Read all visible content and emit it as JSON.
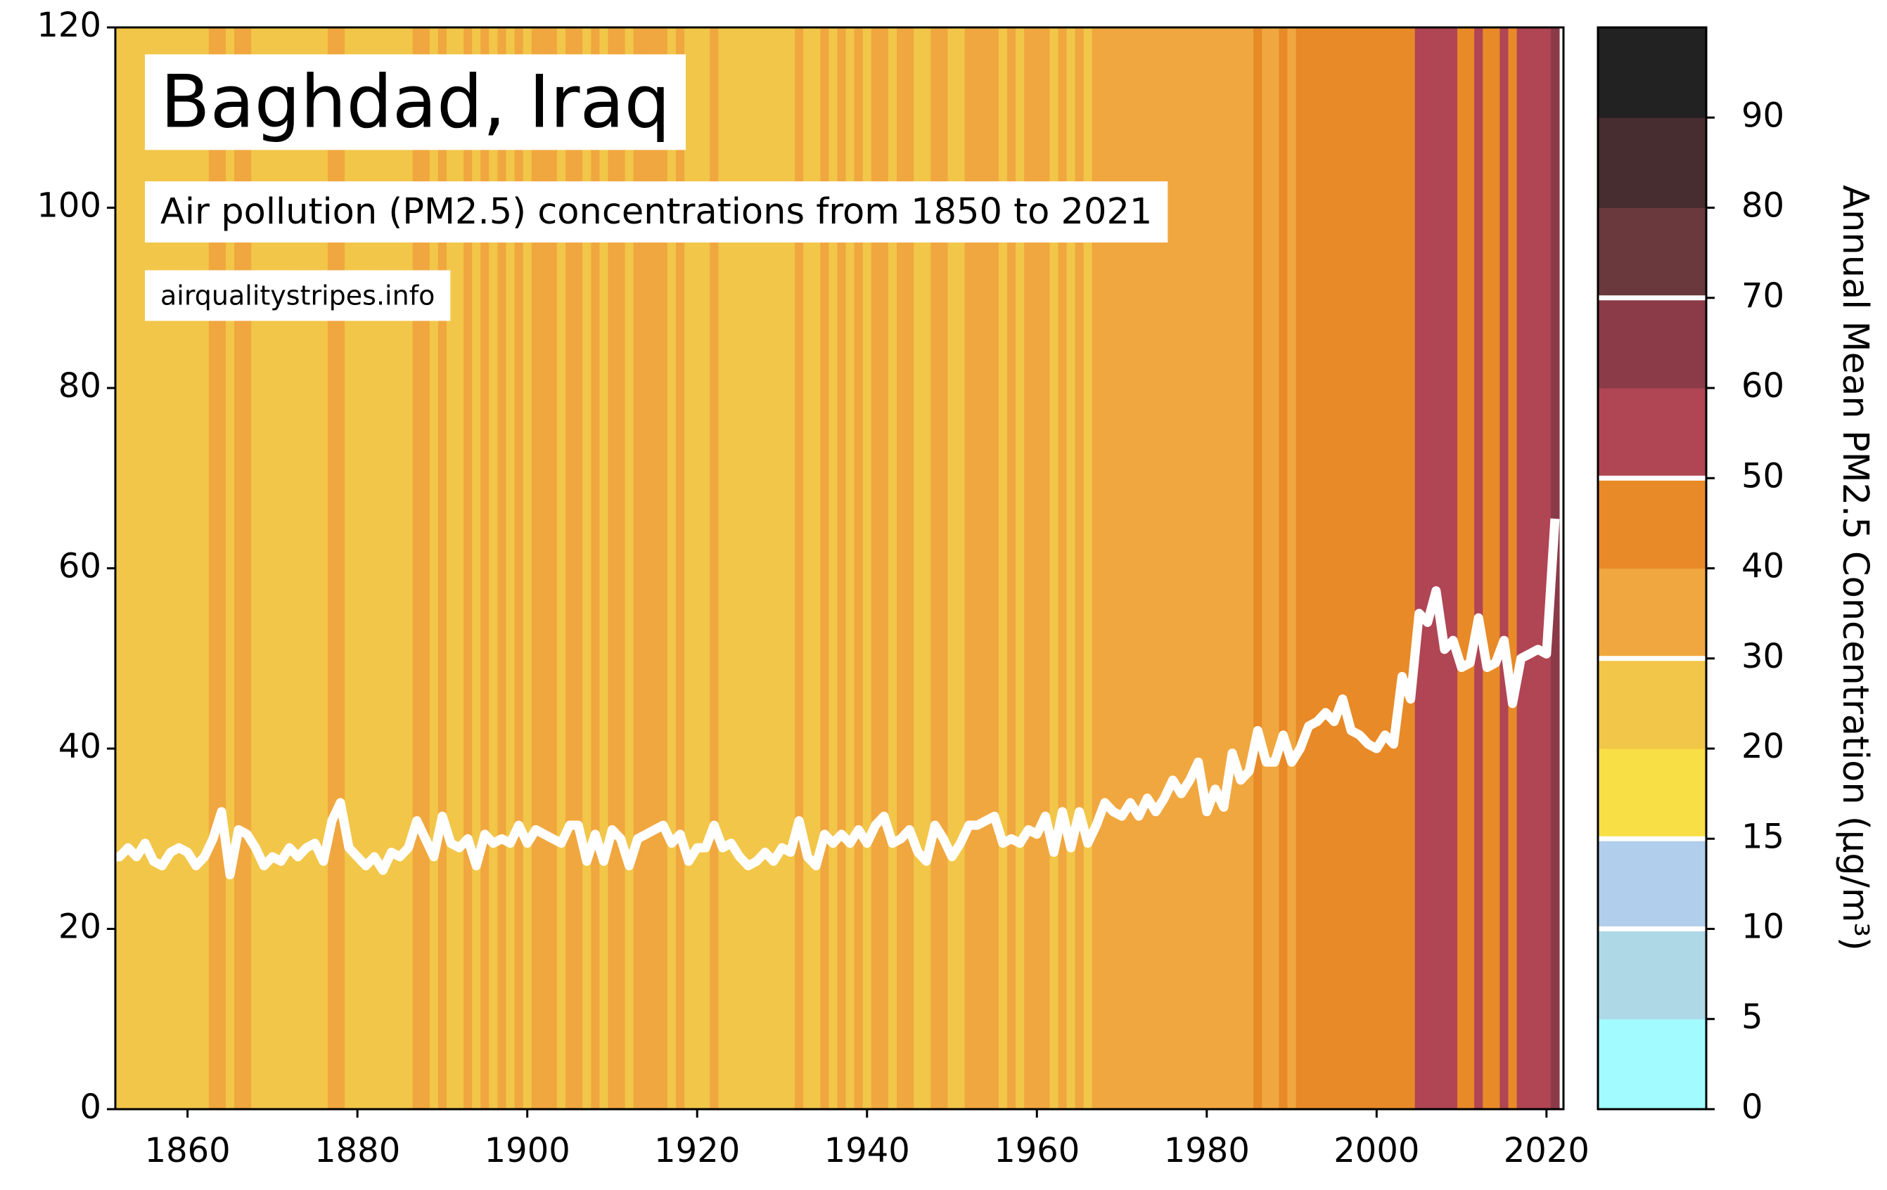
{
  "chart_data": {
    "type": "stripes",
    "title": "Baghdad, Iraq",
    "subtitle": "Air pollution (PM2.5) concentrations from 1850 to 2021",
    "source": "airqualitystripes.info",
    "x": [
      1850,
      1851,
      1852,
      1853,
      1854,
      1855,
      1856,
      1857,
      1858,
      1859,
      1860,
      1861,
      1862,
      1863,
      1864,
      1865,
      1866,
      1867,
      1868,
      1869,
      1870,
      1871,
      1872,
      1873,
      1874,
      1875,
      1876,
      1877,
      1878,
      1879,
      1880,
      1881,
      1882,
      1883,
      1884,
      1885,
      1886,
      1887,
      1888,
      1889,
      1890,
      1891,
      1892,
      1893,
      1894,
      1895,
      1896,
      1897,
      1898,
      1899,
      1900,
      1901,
      1902,
      1903,
      1904,
      1905,
      1906,
      1907,
      1908,
      1909,
      1910,
      1911,
      1912,
      1913,
      1914,
      1915,
      1916,
      1917,
      1918,
      1919,
      1920,
      1921,
      1922,
      1923,
      1924,
      1925,
      1926,
      1927,
      1928,
      1929,
      1930,
      1931,
      1932,
      1933,
      1934,
      1935,
      1936,
      1937,
      1938,
      1939,
      1940,
      1941,
      1942,
      1943,
      1944,
      1945,
      1946,
      1947,
      1948,
      1949,
      1950,
      1951,
      1952,
      1953,
      1954,
      1955,
      1956,
      1957,
      1958,
      1959,
      1960,
      1961,
      1962,
      1963,
      1964,
      1965,
      1966,
      1967,
      1968,
      1969,
      1970,
      1971,
      1972,
      1973,
      1974,
      1975,
      1976,
      1977,
      1978,
      1979,
      1980,
      1981,
      1982,
      1983,
      1984,
      1985,
      1986,
      1987,
      1988,
      1989,
      1990,
      1991,
      1992,
      1993,
      1994,
      1995,
      1996,
      1997,
      1998,
      1999,
      2000,
      2001,
      2002,
      2003,
      2004,
      2005,
      2006,
      2007,
      2008,
      2009,
      2010,
      2011,
      2012,
      2013,
      2014,
      2015,
      2016,
      2017,
      2018,
      2019,
      2020,
      2021
    ],
    "values": [
      27.5,
      28,
      28,
      29,
      28,
      29.5,
      27.5,
      27,
      28.5,
      29,
      28.5,
      27,
      28,
      30,
      33,
      26,
      31,
      30.5,
      29,
      27,
      28,
      27.5,
      29,
      28,
      29,
      29.5,
      27.5,
      32,
      34,
      29,
      28,
      27,
      28,
      26.5,
      28.5,
      28,
      29,
      32,
      30,
      28,
      32.5,
      29.5,
      29,
      30,
      27,
      30.5,
      29.5,
      30,
      29.5,
      31.5,
      29.5,
      31,
      30.5,
      30,
      29.5,
      31.5,
      31.5,
      27.5,
      30.5,
      27.5,
      31,
      30,
      27,
      30,
      30.5,
      31,
      31.5,
      29.5,
      30.5,
      27.5,
      29,
      29,
      31.5,
      29,
      29.5,
      28,
      27,
      27.5,
      28.5,
      27.5,
      29,
      28.5,
      32,
      28,
      27,
      30.5,
      29.5,
      30.5,
      29.5,
      31,
      29.5,
      31.5,
      32.5,
      29.5,
      30,
      31,
      28.5,
      27.5,
      31.5,
      30,
      28,
      29.5,
      31.5,
      31.5,
      32,
      32.5,
      29.5,
      30,
      29.5,
      31,
      30.5,
      32.5,
      28.5,
      33,
      29,
      33,
      29.5,
      31.5,
      34,
      33,
      32.5,
      34,
      32.5,
      34.5,
      33,
      34.5,
      36.5,
      35,
      36.5,
      38.5,
      33,
      35.5,
      33.5,
      39.5,
      36.5,
      37.5,
      42,
      38.5,
      38.5,
      41.5,
      38.5,
      40,
      42.5,
      43,
      44,
      43,
      45.5,
      42,
      41.5,
      40.5,
      40,
      41.5,
      40.5,
      48,
      45.5,
      55,
      54,
      57.5,
      51,
      52,
      49,
      49.5,
      54.5,
      49,
      49.5,
      52,
      45,
      50,
      50.5,
      51,
      50.5,
      65.5
    ],
    "line_color": "#ffffff",
    "xlim": [
      1851.5,
      2022
    ],
    "xticks": [
      1860,
      1880,
      1900,
      1920,
      1940,
      1960,
      1980,
      2000,
      2020
    ],
    "ylim": [
      0,
      120
    ],
    "yticks": [
      0,
      20,
      40,
      60,
      80,
      100,
      120
    ],
    "colorbar": {
      "label": "Annual Mean PM2.5 Concentration (µg/m³)",
      "bounds": [
        0,
        5,
        10,
        15,
        20,
        30,
        40,
        50,
        60,
        70,
        80,
        90,
        100
      ],
      "colors": [
        "#a2fcff",
        "#aed8e6",
        "#b1cfec",
        "#f7df45",
        "#f2c649",
        "#f0a73f",
        "#e88a27",
        "#b04554",
        "#8b3a48",
        "#6a393d",
        "#472d30",
        "#222222"
      ],
      "ticks": [
        0,
        5,
        10,
        15,
        20,
        30,
        40,
        50,
        60,
        70,
        80,
        90
      ],
      "markers": [
        10,
        15,
        30,
        50,
        70
      ]
    }
  }
}
